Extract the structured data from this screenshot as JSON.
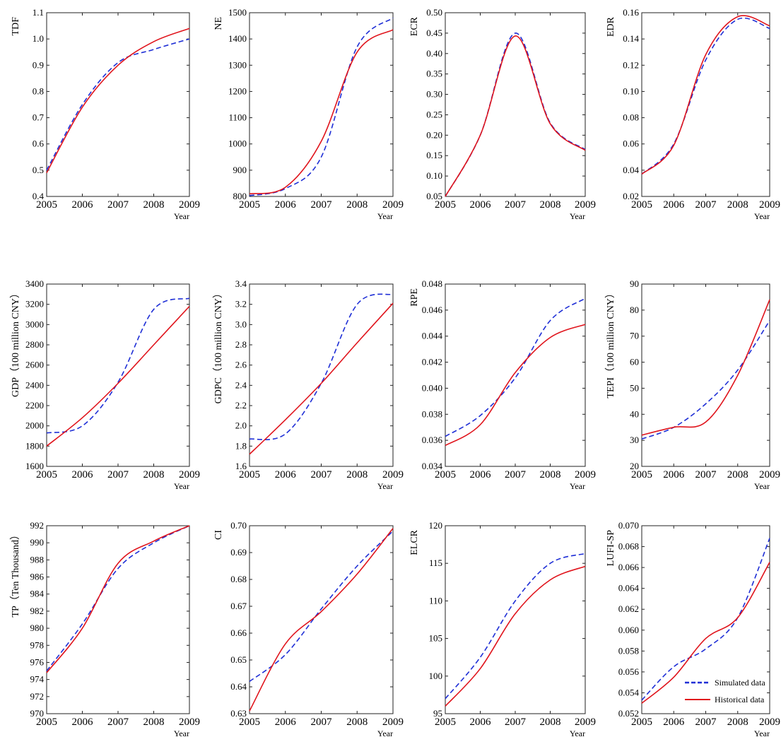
{
  "chart_data": [
    {
      "type": "line",
      "ylabel": "TDF",
      "xlabel": "Year",
      "x": [
        2005,
        2006,
        2007,
        2008,
        2009
      ],
      "xticks": [
        "2005",
        "2006",
        "2007",
        "2008",
        "2009"
      ],
      "ylim": [
        0.4,
        1.1
      ],
      "yticks": [
        "0.4",
        "0.5",
        "0.6",
        "0.7",
        "0.8",
        "0.9",
        "1.0",
        "1.1"
      ],
      "series": [
        {
          "name": "Simulated data",
          "style": "dashed",
          "color": "#1f2fd6",
          "values": [
            0.5,
            0.75,
            0.91,
            0.96,
            1.0
          ]
        },
        {
          "name": "Historical data",
          "style": "solid",
          "color": "#e0141c",
          "values": [
            0.49,
            0.74,
            0.9,
            0.99,
            1.04
          ]
        }
      ]
    },
    {
      "type": "line",
      "ylabel": "NE",
      "xlabel": "Year",
      "x": [
        2005,
        2006,
        2007,
        2008,
        2009
      ],
      "xticks": [
        "2005",
        "2006",
        "2007",
        "2008",
        "2009"
      ],
      "ylim": [
        800,
        1500
      ],
      "yticks": [
        "800",
        "900",
        "1000",
        "1100",
        "1200",
        "1300",
        "1400",
        "1500"
      ],
      "series": [
        {
          "name": "Simulated data",
          "style": "dashed",
          "color": "#1f2fd6",
          "values": [
            803,
            830,
            950,
            1370,
            1480
          ]
        },
        {
          "name": "Historical data",
          "style": "solid",
          "color": "#e0141c",
          "values": [
            810,
            835,
            1010,
            1350,
            1435
          ]
        }
      ]
    },
    {
      "type": "line",
      "ylabel": "ECR",
      "xlabel": "Year",
      "x": [
        2005,
        2006,
        2007,
        2008,
        2009
      ],
      "xticks": [
        "2005",
        "2006",
        "2007",
        "2008",
        "2009"
      ],
      "ylim": [
        0.05,
        0.5
      ],
      "yticks": [
        "0.05",
        "0.10",
        "0.15",
        "0.20",
        "0.25",
        "0.30",
        "0.35",
        "0.40",
        "0.45",
        "0.50"
      ],
      "series": [
        {
          "name": "Simulated data",
          "style": "dashed",
          "color": "#1f2fd6",
          "values": [
            0.05,
            0.2,
            0.45,
            0.23,
            0.165
          ]
        },
        {
          "name": "Historical data",
          "style": "solid",
          "color": "#e0141c",
          "values": [
            0.05,
            0.2,
            0.443,
            0.228,
            0.163
          ]
        }
      ]
    },
    {
      "type": "line",
      "ylabel": "EDR",
      "xlabel": "Year",
      "x": [
        2005,
        2006,
        2007,
        2008,
        2009
      ],
      "xticks": [
        "2005",
        "2006",
        "2007",
        "2008",
        "2009"
      ],
      "ylim": [
        0.02,
        0.16
      ],
      "yticks": [
        "0.02",
        "0.04",
        "0.06",
        "0.08",
        "0.10",
        "0.12",
        "0.14",
        "0.16"
      ],
      "series": [
        {
          "name": "Simulated data",
          "style": "dashed",
          "color": "#1f2fd6",
          "values": [
            0.037,
            0.06,
            0.124,
            0.155,
            0.148
          ]
        },
        {
          "name": "Historical data",
          "style": "solid",
          "color": "#e0141c",
          "values": [
            0.037,
            0.059,
            0.128,
            0.157,
            0.15
          ]
        }
      ]
    },
    {
      "type": "line",
      "ylabel": "GDP（100 million CNY）",
      "xlabel": "Year",
      "x": [
        2005,
        2006,
        2007,
        2008,
        2009
      ],
      "xticks": [
        "2005",
        "2006",
        "2007",
        "2008",
        "2009"
      ],
      "ylim": [
        1600,
        3400
      ],
      "yticks": [
        "1600",
        "1800",
        "2000",
        "2200",
        "2400",
        "2600",
        "2800",
        "3000",
        "3200",
        "3400"
      ],
      "series": [
        {
          "name": "Simulated data",
          "style": "dashed",
          "color": "#1f2fd6",
          "values": [
            1930,
            2000,
            2430,
            3150,
            3260
          ]
        },
        {
          "name": "Historical data",
          "style": "solid",
          "color": "#e0141c",
          "values": [
            1800,
            2080,
            2420,
            2800,
            3180
          ]
        }
      ]
    },
    {
      "type": "line",
      "ylabel": "GDPC（100 million CNY）",
      "xlabel": "Year",
      "x": [
        2005,
        2006,
        2007,
        2008,
        2009
      ],
      "xticks": [
        "2005",
        "2006",
        "2007",
        "2008",
        "2009"
      ],
      "ylim": [
        1.6,
        3.4
      ],
      "yticks": [
        "1.6",
        "1.8",
        "2.0",
        "2.2",
        "2.4",
        "2.6",
        "2.8",
        "3.0",
        "3.2",
        "3.4"
      ],
      "series": [
        {
          "name": "Simulated data",
          "style": "dashed",
          "color": "#1f2fd6",
          "values": [
            1.87,
            1.92,
            2.42,
            3.2,
            3.3
          ]
        },
        {
          "name": "Historical data",
          "style": "solid",
          "color": "#e0141c",
          "values": [
            1.72,
            2.06,
            2.42,
            2.82,
            3.21
          ]
        }
      ]
    },
    {
      "type": "line",
      "ylabel": "RPE",
      "xlabel": "Year",
      "x": [
        2005,
        2006,
        2007,
        2008,
        2009
      ],
      "xticks": [
        "2005",
        "2006",
        "2007",
        "2008",
        "2009"
      ],
      "ylim": [
        0.034,
        0.048
      ],
      "yticks": [
        "0.034",
        "0.036",
        "0.038",
        "0.040",
        "0.042",
        "0.044",
        "0.046",
        "0.048"
      ],
      "series": [
        {
          "name": "Simulated data",
          "style": "dashed",
          "color": "#1f2fd6",
          "values": [
            0.0363,
            0.0379,
            0.0408,
            0.0452,
            0.0469
          ]
        },
        {
          "name": "Historical data",
          "style": "solid",
          "color": "#e0141c",
          "values": [
            0.0356,
            0.0372,
            0.0412,
            0.0439,
            0.0449
          ]
        }
      ]
    },
    {
      "type": "line",
      "ylabel": "TEPI（100 million CNY）",
      "xlabel": "Year",
      "x": [
        2005,
        2006,
        2007,
        2008,
        2009
      ],
      "xticks": [
        "2005",
        "2006",
        "2007",
        "2008",
        "2009"
      ],
      "ylim": [
        20,
        90
      ],
      "yticks": [
        "20",
        "30",
        "40",
        "50",
        "60",
        "70",
        "80",
        "90"
      ],
      "series": [
        {
          "name": "Simulated data",
          "style": "dashed",
          "color": "#1f2fd6",
          "values": [
            30.5,
            35,
            44,
            57,
            76
          ]
        },
        {
          "name": "Historical data",
          "style": "solid",
          "color": "#e0141c",
          "values": [
            32,
            35,
            37,
            55,
            84
          ]
        }
      ]
    },
    {
      "type": "line",
      "ylabel": "TP（Ten Thousand）",
      "xlabel": "Year",
      "x": [
        2005,
        2006,
        2007,
        2008,
        2009
      ],
      "xticks": [
        "2005",
        "2006",
        "2007",
        "2008",
        "2009"
      ],
      "ylim": [
        970,
        992
      ],
      "yticks": [
        "970",
        "972",
        "974",
        "976",
        "978",
        "980",
        "982",
        "984",
        "986",
        "988",
        "990",
        "992"
      ],
      "series": [
        {
          "name": "Simulated data",
          "style": "dashed",
          "color": "#1f2fd6",
          "values": [
            975,
            980.5,
            987,
            990,
            992
          ]
        },
        {
          "name": "Historical data",
          "style": "solid",
          "color": "#e0141c",
          "values": [
            974.8,
            980,
            987.6,
            990.2,
            992
          ]
        }
      ]
    },
    {
      "type": "line",
      "ylabel": "CI",
      "xlabel": "Year",
      "x": [
        2005,
        2006,
        2007,
        2008,
        2009
      ],
      "xticks": [
        "2005",
        "2006",
        "2007",
        "2008",
        "2009"
      ],
      "ylim": [
        0.63,
        0.7
      ],
      "yticks": [
        "0.63",
        "0.64",
        "0.65",
        "0.66",
        "0.67",
        "0.68",
        "0.69",
        "0.70"
      ],
      "series": [
        {
          "name": "Simulated data",
          "style": "dashed",
          "color": "#1f2fd6",
          "values": [
            0.642,
            0.652,
            0.669,
            0.685,
            0.698
          ]
        },
        {
          "name": "Historical data",
          "style": "solid",
          "color": "#e0141c",
          "values": [
            0.631,
            0.656,
            0.668,
            0.682,
            0.699
          ]
        }
      ]
    },
    {
      "type": "line",
      "ylabel": "ELCR",
      "xlabel": "Year",
      "x": [
        2005,
        2006,
        2007,
        2008,
        2009
      ],
      "xticks": [
        "2005",
        "2006",
        "2007",
        "2008",
        "2009"
      ],
      "ylim": [
        95,
        120
      ],
      "yticks": [
        "95",
        "100",
        "105",
        "110",
        "115",
        "120"
      ],
      "series": [
        {
          "name": "Simulated data",
          "style": "dashed",
          "color": "#1f2fd6",
          "values": [
            97,
            102.5,
            110,
            115,
            116.3
          ]
        },
        {
          "name": "Historical data",
          "style": "solid",
          "color": "#e0141c",
          "values": [
            96,
            101,
            108.3,
            112.8,
            114.6
          ]
        }
      ]
    },
    {
      "type": "line",
      "ylabel": "LUFI-SP",
      "xlabel": "Year",
      "x": [
        2005,
        2006,
        2007,
        2008,
        2009
      ],
      "xticks": [
        "2005",
        "2006",
        "2007",
        "2008",
        "2009"
      ],
      "ylim": [
        0.052,
        0.07
      ],
      "yticks": [
        "0.052",
        "0.054",
        "0.056",
        "0.058",
        "0.060",
        "0.062",
        "0.064",
        "0.066",
        "0.068",
        "0.070"
      ],
      "legend": "bottom-right",
      "series": [
        {
          "name": "Simulated data",
          "style": "dashed",
          "color": "#1f2fd6",
          "values": [
            0.0533,
            0.0565,
            0.0582,
            0.0612,
            0.0688
          ]
        },
        {
          "name": "Historical data",
          "style": "solid",
          "color": "#e0141c",
          "values": [
            0.053,
            0.0555,
            0.0592,
            0.0612,
            0.0665
          ]
        }
      ]
    }
  ]
}
